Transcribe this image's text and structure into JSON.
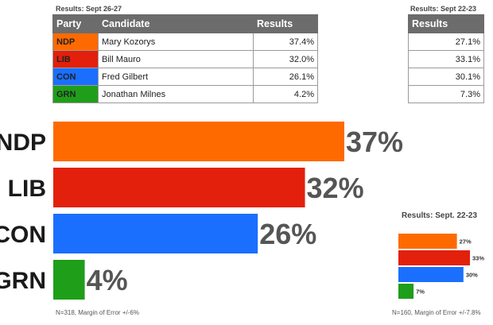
{
  "left_table": {
    "caption": "Results: Sept 26-27",
    "headers": {
      "party": "Party",
      "candidate": "Candidate",
      "results": "Results"
    },
    "rows": [
      {
        "party": "NDP",
        "candidate": "Mary Kozorys",
        "result": "37.4%",
        "color": "#ff6a00"
      },
      {
        "party": "LIB",
        "candidate": "Bill Mauro",
        "result": "32.0%",
        "color": "#e2200c"
      },
      {
        "party": "CON",
        "candidate": "Fred Gilbert",
        "result": "26.1%",
        "color": "#1a6fff"
      },
      {
        "party": "GRN",
        "candidate": "Jonathan Milnes",
        "result": "4.2%",
        "color": "#1f9e1a"
      }
    ]
  },
  "right_table": {
    "caption": "Results: Sept 22-23",
    "header": "Results",
    "rows": [
      "27.1%",
      "33.1%",
      "30.1%",
      "7.3%"
    ]
  },
  "chart_data": [
    {
      "type": "bar",
      "orientation": "horizontal",
      "categories": [
        "NDP",
        "LIB",
        "CON",
        "GRN"
      ],
      "values": [
        37,
        32,
        26,
        4
      ],
      "value_labels": [
        "37%",
        "32%",
        "26%",
        "4%"
      ],
      "colors": [
        "#ff6a00",
        "#e2200c",
        "#1a6fff",
        "#1f9e1a"
      ],
      "xlim": [
        0,
        37
      ],
      "footnote": "N=318, Margin of Error +/-6%"
    },
    {
      "type": "bar",
      "orientation": "horizontal",
      "title": "Results: Sept. 22-23",
      "categories": [
        "NDP",
        "LIB",
        "CON",
        "GRN"
      ],
      "values": [
        27,
        33,
        30,
        7
      ],
      "value_labels": [
        "27%",
        "33%",
        "30%",
        "7%"
      ],
      "colors": [
        "#ff6a00",
        "#e2200c",
        "#1a6fff",
        "#1f9e1a"
      ],
      "xlim": [
        0,
        33
      ],
      "footnote": "N=160, Margin of Error +/-7.8%"
    }
  ]
}
